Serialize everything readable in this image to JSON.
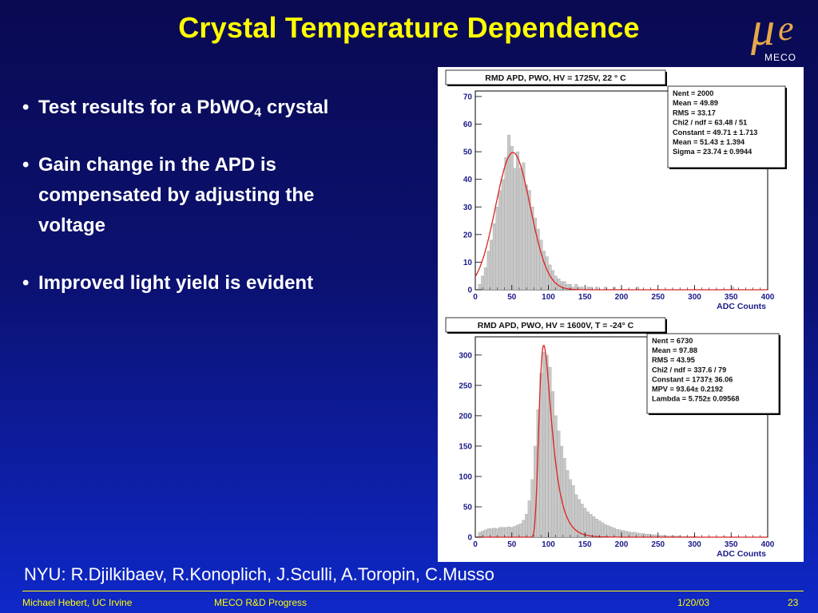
{
  "slide": {
    "title": "Crystal Temperature Dependence",
    "logo_text": "MECO",
    "bullets": [
      {
        "pre": "Test results for a PbWO",
        "sub": "4",
        "post": " crystal"
      },
      {
        "pre": "Gain change in the APD is compensated by adjusting the voltage",
        "sub": "",
        "post": ""
      },
      {
        "pre": "Improved light yield is evident",
        "sub": "",
        "post": ""
      }
    ],
    "credits": "NYU: R.Djilkibaev, R.Konoplich, J.Sculli, A.Toropin, C.Musso",
    "footer": {
      "author": "Michael Hebert, UC Irvine",
      "talk": "MECO R&D Progress",
      "date": "1/20/03",
      "page": "23"
    }
  },
  "chart_data": [
    {
      "type": "histogram",
      "title": "RMD APD, PWO, HV = 1725V, 22 ° C",
      "xlabel": "ADC Counts",
      "xlim": [
        0,
        400
      ],
      "ylim": [
        0,
        72
      ],
      "xticks": [
        0,
        50,
        100,
        150,
        200,
        250,
        300,
        350,
        400
      ],
      "yticks": [
        0,
        10,
        20,
        30,
        40,
        50,
        60,
        70
      ],
      "fit": {
        "model": "gaussian",
        "constant": 49.71,
        "mean": 51.43,
        "sigma": 23.74,
        "color": "#dd2222"
      },
      "bar_color": "#c8c8c8",
      "stats": [
        "Nent = 2000",
        "Mean  =  49.89",
        "RMS   =  33.17",
        "Chi2 / ndf = 63.48 / 51",
        "Constant = 49.71  ± 1.713",
        "Mean     = 51.43  ± 1.394",
        "Sigma    = 23.74  ± 0.9944"
      ],
      "bins": [
        [
          0,
          0
        ],
        [
          4,
          2
        ],
        [
          8,
          5
        ],
        [
          12,
          8
        ],
        [
          16,
          14
        ],
        [
          20,
          18
        ],
        [
          24,
          24
        ],
        [
          28,
          30
        ],
        [
          32,
          36
        ],
        [
          36,
          40
        ],
        [
          40,
          48
        ],
        [
          44,
          56
        ],
        [
          48,
          52
        ],
        [
          52,
          44
        ],
        [
          56,
          50
        ],
        [
          60,
          44
        ],
        [
          64,
          46
        ],
        [
          68,
          38
        ],
        [
          72,
          36
        ],
        [
          76,
          30
        ],
        [
          80,
          26
        ],
        [
          84,
          22
        ],
        [
          88,
          18
        ],
        [
          92,
          14
        ],
        [
          96,
          12
        ],
        [
          100,
          9
        ],
        [
          104,
          7
        ],
        [
          108,
          5
        ],
        [
          112,
          4
        ],
        [
          116,
          3
        ],
        [
          120,
          3
        ],
        [
          124,
          2
        ],
        [
          128,
          2
        ],
        [
          132,
          1
        ],
        [
          136,
          2
        ],
        [
          140,
          1
        ],
        [
          144,
          1
        ],
        [
          148,
          0
        ],
        [
          152,
          1
        ],
        [
          156,
          1
        ],
        [
          160,
          0
        ],
        [
          164,
          1
        ],
        [
          168,
          0
        ],
        [
          172,
          0
        ],
        [
          176,
          1
        ],
        [
          180,
          0
        ],
        [
          184,
          0
        ],
        [
          188,
          1
        ],
        [
          192,
          0
        ],
        [
          196,
          0
        ],
        [
          200,
          0
        ],
        [
          220,
          1
        ],
        [
          240,
          0
        ],
        [
          260,
          0
        ],
        [
          300,
          0
        ],
        [
          350,
          1
        ],
        [
          360,
          0
        ]
      ]
    },
    {
      "type": "histogram",
      "title": "RMD APD, PWO, HV = 1600V, T = -24° C",
      "xlabel": "ADC Counts",
      "xlim": [
        0,
        400
      ],
      "ylim": [
        0,
        330
      ],
      "xticks": [
        0,
        50,
        100,
        150,
        200,
        250,
        300,
        350,
        400
      ],
      "yticks": [
        0,
        50,
        100,
        150,
        200,
        250,
        300
      ],
      "fit": {
        "model": "landau",
        "constant": 1737,
        "mpv": 93.64,
        "lambda": 5.752,
        "color": "#dd2222"
      },
      "bar_color": "#c8c8c8",
      "stats": [
        "Nent = 6730",
        "Mean  =  97.88",
        "RMS   =  43.95",
        "Chi2 / ndf = 337.6 / 79",
        "Constant =  1737± 36.06",
        "MPV      = 93.64± 0.2192",
        "Lambda = 5.752± 0.09568"
      ],
      "bins": [
        [
          0,
          0
        ],
        [
          4,
          8
        ],
        [
          8,
          10
        ],
        [
          12,
          12
        ],
        [
          16,
          14
        ],
        [
          20,
          14
        ],
        [
          24,
          15
        ],
        [
          28,
          14
        ],
        [
          32,
          16
        ],
        [
          36,
          16
        ],
        [
          40,
          16
        ],
        [
          44,
          17
        ],
        [
          48,
          16
        ],
        [
          52,
          18
        ],
        [
          56,
          20
        ],
        [
          60,
          22
        ],
        [
          64,
          28
        ],
        [
          68,
          38
        ],
        [
          72,
          60
        ],
        [
          76,
          95
        ],
        [
          80,
          150
        ],
        [
          84,
          210
        ],
        [
          88,
          270
        ],
        [
          92,
          305
        ],
        [
          96,
          300
        ],
        [
          100,
          280
        ],
        [
          104,
          240
        ],
        [
          108,
          200
        ],
        [
          112,
          175
        ],
        [
          116,
          150
        ],
        [
          120,
          130
        ],
        [
          124,
          110
        ],
        [
          128,
          95
        ],
        [
          132,
          85
        ],
        [
          136,
          70
        ],
        [
          140,
          62
        ],
        [
          144,
          55
        ],
        [
          148,
          48
        ],
        [
          152,
          42
        ],
        [
          156,
          38
        ],
        [
          160,
          34
        ],
        [
          164,
          30
        ],
        [
          168,
          27
        ],
        [
          172,
          24
        ],
        [
          176,
          21
        ],
        [
          180,
          19
        ],
        [
          184,
          17
        ],
        [
          188,
          15
        ],
        [
          192,
          13
        ],
        [
          196,
          12
        ],
        [
          200,
          11
        ],
        [
          204,
          10
        ],
        [
          208,
          9
        ],
        [
          212,
          8
        ],
        [
          216,
          8
        ],
        [
          220,
          7
        ],
        [
          224,
          6
        ],
        [
          228,
          6
        ],
        [
          232,
          5
        ],
        [
          236,
          5
        ],
        [
          240,
          4
        ],
        [
          244,
          4
        ],
        [
          248,
          3
        ],
        [
          252,
          3
        ],
        [
          256,
          3
        ],
        [
          260,
          2
        ],
        [
          264,
          2
        ],
        [
          268,
          2
        ],
        [
          272,
          2
        ],
        [
          276,
          2
        ],
        [
          280,
          1
        ],
        [
          284,
          1
        ],
        [
          288,
          1
        ],
        [
          292,
          1
        ],
        [
          296,
          1
        ],
        [
          300,
          1
        ],
        [
          320,
          0
        ],
        [
          340,
          1
        ],
        [
          360,
          0
        ],
        [
          380,
          0
        ],
        [
          396,
          0
        ]
      ]
    }
  ]
}
